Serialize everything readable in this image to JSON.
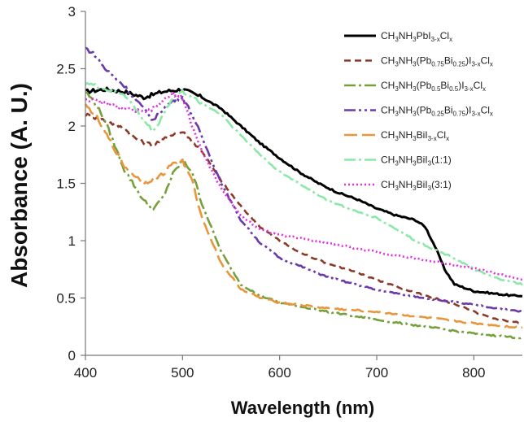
{
  "chart_data": {
    "type": "line",
    "title": "",
    "xlabel": "Wavelength (nm)",
    "ylabel": "Absorbance (A. U.)",
    "xlim": [
      400,
      850
    ],
    "ylim": [
      0,
      3
    ],
    "xticks": [
      400,
      500,
      600,
      700,
      800
    ],
    "yticks": [
      0,
      0.5,
      1,
      1.5,
      2,
      2.5,
      3
    ],
    "grid": false,
    "legend_position": "top-right",
    "series": [
      {
        "name": "CH3NH3PbI3-xClx",
        "legend_label": {
          "parts": [
            [
              "CH",
              ""
            ],
            [
              "3",
              "sub"
            ],
            [
              "NH",
              ""
            ],
            [
              "3",
              "sub"
            ],
            [
              "PbI",
              ""
            ],
            [
              "3-x",
              "sub"
            ],
            [
              "Cl",
              ""
            ],
            [
              "x",
              "sub"
            ]
          ]
        },
        "color": "#000000",
        "dash": "solid",
        "x": [
          400,
          420,
          440,
          460,
          480,
          500,
          520,
          540,
          560,
          580,
          600,
          620,
          640,
          660,
          680,
          700,
          720,
          740,
          750,
          760,
          770,
          780,
          800,
          820,
          840,
          850
        ],
        "y": [
          2.3,
          2.32,
          2.3,
          2.25,
          2.3,
          2.32,
          2.25,
          2.15,
          2.0,
          1.85,
          1.72,
          1.6,
          1.5,
          1.42,
          1.36,
          1.28,
          1.22,
          1.18,
          1.12,
          0.95,
          0.75,
          0.62,
          0.56,
          0.54,
          0.52,
          0.52
        ]
      },
      {
        "name": "CH3NH3(Pb0.75Bi0.25)I3-xClx",
        "legend_label": {
          "parts": [
            [
              "CH",
              ""
            ],
            [
              "3",
              "sub"
            ],
            [
              "NH",
              ""
            ],
            [
              "3",
              "sub"
            ],
            [
              "(Pb",
              ""
            ],
            [
              "0.75",
              "sub"
            ],
            [
              "Bi",
              ""
            ],
            [
              "0.25",
              "sub"
            ],
            [
              ")I",
              ""
            ],
            [
              "3-x",
              "sub"
            ],
            [
              "Cl",
              ""
            ],
            [
              "x",
              "sub"
            ]
          ]
        },
        "color": "#8b3a2a",
        "dash": "8,5",
        "x": [
          400,
          420,
          440,
          450,
          460,
          470,
          480,
          490,
          500,
          520,
          540,
          560,
          580,
          600,
          620,
          650,
          680,
          700,
          720,
          750,
          780,
          800,
          820,
          850
        ],
        "y": [
          2.1,
          2.05,
          1.98,
          1.9,
          1.85,
          1.84,
          1.88,
          1.93,
          1.95,
          1.78,
          1.52,
          1.3,
          1.12,
          1.0,
          0.9,
          0.8,
          0.72,
          0.66,
          0.6,
          0.52,
          0.45,
          0.38,
          0.32,
          0.28
        ]
      },
      {
        "name": "CH3NH3(Pb0.5Bi0.5)I3-xClx",
        "legend_label": {
          "parts": [
            [
              "CH",
              ""
            ],
            [
              "3",
              "sub"
            ],
            [
              "NH",
              ""
            ],
            [
              "3",
              "sub"
            ],
            [
              "(Pb",
              ""
            ],
            [
              "0.5",
              "sub"
            ],
            [
              "Bi",
              ""
            ],
            [
              "0.5",
              "sub"
            ],
            [
              ")I",
              ""
            ],
            [
              "3-x",
              "sub"
            ],
            [
              "Cl",
              ""
            ],
            [
              "x",
              "sub"
            ]
          ]
        },
        "color": "#77a03a",
        "dash": "14,4,3,4",
        "x": [
          400,
          410,
          420,
          440,
          460,
          470,
          480,
          490,
          500,
          510,
          520,
          540,
          560,
          580,
          600,
          650,
          700,
          750,
          800,
          850
        ],
        "y": [
          2.3,
          2.2,
          2.05,
          1.62,
          1.35,
          1.27,
          1.38,
          1.58,
          1.7,
          1.6,
          1.32,
          0.9,
          0.62,
          0.52,
          0.46,
          0.38,
          0.31,
          0.25,
          0.19,
          0.15
        ]
      },
      {
        "name": "CH3NH3(Pb0.25Bi0.75)I3-xClx",
        "legend_label": {
          "parts": [
            [
              "CH",
              ""
            ],
            [
              "3",
              "sub"
            ],
            [
              "NH",
              ""
            ],
            [
              "3",
              "sub"
            ],
            [
              "(Pb",
              ""
            ],
            [
              "0.25",
              "sub"
            ],
            [
              "Bi",
              ""
            ],
            [
              "0.75",
              "sub"
            ],
            [
              ")I",
              ""
            ],
            [
              "3-x",
              "sub"
            ],
            [
              "Cl",
              ""
            ],
            [
              "x",
              "sub"
            ]
          ]
        },
        "color": "#6a3aa8",
        "dash": "14,4,3,4,3,4",
        "x": [
          400,
          410,
          420,
          440,
          460,
          470,
          480,
          490,
          500,
          510,
          520,
          540,
          560,
          580,
          600,
          650,
          700,
          750,
          800,
          850
        ],
        "y": [
          2.68,
          2.62,
          2.5,
          2.35,
          2.15,
          2.05,
          2.15,
          2.22,
          2.25,
          2.1,
          1.9,
          1.5,
          1.18,
          0.98,
          0.85,
          0.68,
          0.57,
          0.5,
          0.44,
          0.38
        ]
      },
      {
        "name": "CH3NH3BiI3-xClx",
        "legend_label": {
          "parts": [
            [
              "CH",
              ""
            ],
            [
              "3",
              "sub"
            ],
            [
              "NH",
              ""
            ],
            [
              "3",
              "sub"
            ],
            [
              "BiI",
              ""
            ],
            [
              "3-x",
              "sub"
            ],
            [
              "Cl",
              ""
            ],
            [
              "x",
              "sub"
            ]
          ]
        },
        "color": "#e8963c",
        "dash": "16,6",
        "x": [
          400,
          410,
          420,
          440,
          460,
          480,
          490,
          500,
          510,
          520,
          540,
          560,
          580,
          600,
          650,
          700,
          750,
          800,
          850
        ],
        "y": [
          2.18,
          2.1,
          1.95,
          1.65,
          1.5,
          1.58,
          1.68,
          1.7,
          1.52,
          1.2,
          0.8,
          0.58,
          0.5,
          0.46,
          0.41,
          0.38,
          0.33,
          0.28,
          0.24
        ]
      },
      {
        "name": "CH3NH3BiI3(1:1)",
        "legend_label": {
          "parts": [
            [
              "CH",
              ""
            ],
            [
              "3",
              "sub"
            ],
            [
              "NH",
              ""
            ],
            [
              "3",
              "sub"
            ],
            [
              "BiI",
              ""
            ],
            [
              "3",
              "sub"
            ],
            [
              "(1:1)",
              ""
            ]
          ]
        },
        "color": "#8ce8a8",
        "dash": "14,4,3,4",
        "x": [
          400,
          410,
          420,
          440,
          460,
          470,
          480,
          490,
          500,
          520,
          540,
          560,
          580,
          600,
          620,
          650,
          680,
          700,
          720,
          740,
          760,
          780,
          800,
          820,
          840,
          850
        ],
        "y": [
          2.38,
          2.35,
          2.32,
          2.28,
          2.05,
          1.95,
          2.1,
          2.25,
          2.3,
          2.2,
          2.1,
          1.92,
          1.75,
          1.6,
          1.5,
          1.35,
          1.25,
          1.2,
          1.1,
          1.0,
          0.92,
          0.85,
          0.75,
          0.68,
          0.64,
          0.62
        ]
      },
      {
        "name": "CH3NH3BiI3(3:1)",
        "legend_label": {
          "parts": [
            [
              "CH",
              ""
            ],
            [
              "3",
              "sub"
            ],
            [
              "NH",
              ""
            ],
            [
              "3",
              "sub"
            ],
            [
              "BiI",
              ""
            ],
            [
              "3",
              "sub"
            ],
            [
              "(3:1)",
              ""
            ]
          ]
        },
        "color": "#e030e0",
        "dash": "2,3",
        "x": [
          400,
          410,
          420,
          440,
          460,
          470,
          480,
          490,
          500,
          510,
          520,
          540,
          560,
          580,
          600,
          650,
          700,
          750,
          800,
          820,
          840,
          850
        ],
        "y": [
          2.24,
          2.22,
          2.2,
          2.15,
          2.12,
          2.15,
          2.22,
          2.28,
          2.25,
          2.0,
          1.78,
          1.45,
          1.22,
          1.1,
          1.05,
          0.98,
          0.9,
          0.83,
          0.76,
          0.72,
          0.68,
          0.66
        ]
      }
    ]
  }
}
